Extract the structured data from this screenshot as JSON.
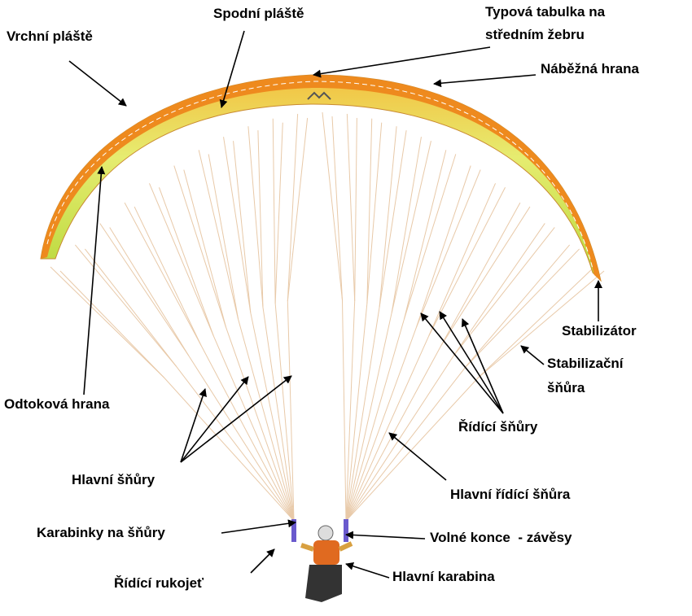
{
  "labels": [
    {
      "lines": [
        "Vrchní pláště"
      ]
    },
    {
      "lines": [
        "Spodní pláště"
      ]
    },
    {
      "lines": [
        "Typová tabulka na",
        "středním žebru"
      ]
    },
    {
      "lines": [
        "Náběžná hrana"
      ]
    },
    {
      "lines": [
        "Stabilizátor"
      ]
    },
    {
      "lines": [
        "Stabilizační",
        "šňůra"
      ]
    },
    {
      "lines": [
        "Řídící šňůry"
      ]
    },
    {
      "lines": [
        "Odtoková hrana"
      ]
    },
    {
      "lines": [
        "Hlavní šňůry"
      ]
    },
    {
      "lines": [
        "Hlavní řídící šňůra"
      ]
    },
    {
      "lines": [
        "Karabinky na šňůry"
      ]
    },
    {
      "lines": [
        "Volné konce  - závěsy"
      ]
    },
    {
      "lines": [
        "Řídící rukojeť"
      ]
    },
    {
      "lines": [
        "Hlavní karabina"
      ]
    }
  ]
}
